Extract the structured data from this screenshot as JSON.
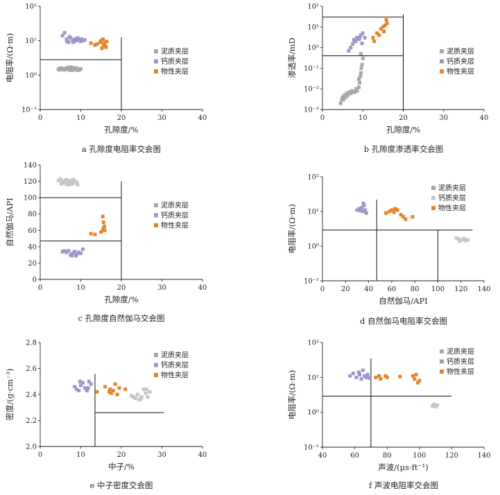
{
  "colors": {
    "mud": "#a7a7ab",
    "mud_light": "#c6c6c9",
    "calcium": "#9c97c9",
    "physical": "#e4852b"
  },
  "chart_data": [
    {
      "id": "a",
      "type": "scatter",
      "caption": "a  孔隙度电阻率交会图",
      "xlabel": "孔隙度/%",
      "ylabel": "电阻率/(Ω·m)",
      "xlim": [
        0,
        40
      ],
      "ylim": [
        0.1,
        100
      ],
      "yscale": "log",
      "xticks": [
        {
          "v": 0,
          "t": "0"
        },
        {
          "v": 10,
          "t": "10"
        },
        {
          "v": 20,
          "t": "20"
        },
        {
          "v": 30,
          "t": "30"
        },
        {
          "v": 40,
          "t": "40"
        }
      ],
      "yticks": [
        {
          "v": 0.1,
          "t": "10⁻¹"
        },
        {
          "v": 1,
          "t": "10⁰"
        },
        {
          "v": 10,
          "t": "10¹"
        },
        {
          "v": 100,
          "t": "10²"
        }
      ],
      "boundaries": [
        [
          [
            0,
            2.8
          ],
          [
            20,
            2.8
          ]
        ],
        [
          [
            20,
            0.1
          ],
          [
            20,
            12.5
          ]
        ]
      ],
      "legend": [
        {
          "label": "泥质夹层",
          "color": "mud"
        },
        {
          "label": "钙质夹层",
          "color": "calcium"
        },
        {
          "label": "物性夹层",
          "color": "physical"
        }
      ],
      "series": [
        {
          "name": "泥质夹层",
          "color": "mud",
          "x": [
            4.5,
            5.0,
            5.5,
            6.0,
            6.5,
            7.0,
            7.2,
            7.5,
            8.0,
            8.2,
            8.5,
            9.0,
            9.2,
            9.5,
            10.0,
            5.8,
            6.8,
            7.8,
            8.8,
            4.8,
            9.6,
            6.3,
            7.6,
            8.6
          ],
          "y": [
            1.5,
            1.6,
            1.55,
            1.45,
            1.5,
            1.6,
            1.4,
            1.55,
            1.5,
            1.62,
            1.45,
            1.55,
            1.38,
            1.48,
            1.52,
            1.42,
            1.66,
            1.38,
            1.6,
            1.42,
            1.4,
            1.56,
            1.7,
            1.46
          ]
        },
        {
          "name": "钙质夹层",
          "color": "calcium",
          "x": [
            5.5,
            6.0,
            6.5,
            7.0,
            7.5,
            8.0,
            8.5,
            9.0,
            9.5,
            10.0,
            10.5,
            11.0,
            7.2,
            8.2,
            9.2,
            6.6,
            10.2
          ],
          "y": [
            14,
            17,
            11,
            9,
            12,
            10,
            11,
            10,
            11,
            9.5,
            10,
            10.5,
            13,
            9,
            12,
            9.5,
            11
          ]
        },
        {
          "name": "物性夹层",
          "color": "physical",
          "x": [
            12.5,
            13.5,
            14.0,
            15.0,
            15.5,
            16.0,
            15.2,
            15.8,
            16.2,
            14.8,
            16.4,
            15.6
          ],
          "y": [
            8.5,
            7.5,
            8,
            10,
            11,
            7,
            6,
            8.5,
            6.5,
            9,
            9.5,
            7.6
          ]
        }
      ]
    },
    {
      "id": "b",
      "type": "scatter",
      "caption": "b  孔隙度渗透率交会图",
      "xlabel": "孔隙度/%",
      "ylabel": "渗透率/mD",
      "xlim": [
        0,
        40
      ],
      "ylim": [
        0.001,
        100
      ],
      "yscale": "log",
      "xticks": [
        {
          "v": 0,
          "t": "0"
        },
        {
          "v": 10,
          "t": "10"
        },
        {
          "v": 20,
          "t": "20"
        },
        {
          "v": 30,
          "t": "30"
        },
        {
          "v": 40,
          "t": "40"
        }
      ],
      "yticks": [
        {
          "v": 0.001,
          "t": "10⁻³"
        },
        {
          "v": 0.01,
          "t": "10⁻²"
        },
        {
          "v": 0.1,
          "t": "10⁻¹"
        },
        {
          "v": 1,
          "t": "10⁰"
        },
        {
          "v": 10,
          "t": "10¹"
        },
        {
          "v": 100,
          "t": "10²"
        }
      ],
      "boundaries": [
        [
          [
            0,
            0.4
          ],
          [
            20,
            0.4
          ]
        ],
        [
          [
            0,
            30
          ],
          [
            20,
            30
          ]
        ],
        [
          [
            20,
            0.001
          ],
          [
            20,
            40
          ]
        ]
      ],
      "legend": [
        {
          "label": "泥质夹层",
          "color": "mud"
        },
        {
          "label": "钙质夹层",
          "color": "calcium"
        },
        {
          "label": "物性夹层",
          "color": "physical"
        }
      ],
      "series": [
        {
          "name": "泥质夹层",
          "color": "mud",
          "x": [
            4.5,
            4.8,
            5.0,
            5.2,
            5.5,
            5.8,
            6.0,
            6.3,
            6.6,
            7.0,
            7.3,
            7.6,
            8.0,
            8.3,
            8.6,
            9.0,
            9.2,
            9.4,
            9.5,
            9.6,
            9.8,
            10.0,
            9.5,
            9.0
          ],
          "y": [
            0.002,
            0.003,
            0.004,
            0.003,
            0.005,
            0.004,
            0.006,
            0.005,
            0.007,
            0.006,
            0.008,
            0.007,
            0.007,
            0.01,
            0.008,
            0.012,
            0.02,
            0.04,
            0.06,
            0.1,
            0.15,
            0.3,
            0.5,
            0.03
          ]
        },
        {
          "name": "钙质夹层",
          "color": "calcium",
          "x": [
            6.5,
            7.0,
            7.5,
            8.0,
            8.5,
            9.0,
            9.5,
            10.0,
            10.5,
            8.2,
            9.2,
            9.8,
            7.8
          ],
          "y": [
            0.7,
            1.0,
            1.5,
            2.0,
            3.0,
            2.5,
            4.0,
            5.0,
            3.0,
            2.0,
            3.0,
            1.6,
            2.4
          ]
        },
        {
          "name": "物性夹层",
          "color": "physical",
          "x": [
            12.5,
            13.5,
            14.0,
            14.5,
            15.0,
            15.5,
            16.0,
            15.8,
            15.2,
            12.8
          ],
          "y": [
            3,
            5,
            4,
            8,
            10,
            12,
            15,
            22,
            6,
            2
          ]
        }
      ]
    },
    {
      "id": "c",
      "type": "scatter",
      "caption": "c  孔隙度自然伽马交会图",
      "xlabel": "孔隙度/%",
      "ylabel": "自然伽马/API",
      "xlim": [
        0,
        40
      ],
      "ylim": [
        0,
        140
      ],
      "yscale": "linear",
      "xticks": [
        {
          "v": 0,
          "t": "0"
        },
        {
          "v": 10,
          "t": "10"
        },
        {
          "v": 20,
          "t": "20"
        },
        {
          "v": 30,
          "t": "30"
        },
        {
          "v": 40,
          "t": "40"
        }
      ],
      "yticks": [
        {
          "v": 0,
          "t": "0"
        },
        {
          "v": 20,
          "t": "20"
        },
        {
          "v": 40,
          "t": "40"
        },
        {
          "v": 60,
          "t": "60"
        },
        {
          "v": 80,
          "t": "80"
        },
        {
          "v": 100,
          "t": "100"
        },
        {
          "v": 120,
          "t": "120"
        },
        {
          "v": 140,
          "t": "140"
        }
      ],
      "boundaries": [
        [
          [
            0,
            100
          ],
          [
            20,
            100
          ]
        ],
        [
          [
            0,
            47
          ],
          [
            20,
            47
          ]
        ],
        [
          [
            20,
            0
          ],
          [
            20,
            120
          ]
        ]
      ],
      "legend": [
        {
          "label": "泥质夹层",
          "color": "mud"
        },
        {
          "label": "钙质夹层",
          "color": "calcium"
        },
        {
          "label": "物性夹层",
          "color": "physical"
        }
      ],
      "series": [
        {
          "name": "泥质夹层",
          "color": "mud_light",
          "x": [
            4.5,
            5.0,
            5.5,
            6.0,
            6.5,
            7.0,
            7.5,
            8.0,
            8.5,
            9.0,
            5.2,
            6.2,
            7.2,
            8.2,
            9.2,
            6.6,
            7.8
          ],
          "y": [
            121,
            123,
            120,
            118,
            122,
            119,
            121,
            117,
            120,
            119,
            117,
            121,
            116,
            122,
            116,
            116,
            118
          ]
        },
        {
          "name": "钙质夹层",
          "color": "calcium",
          "x": [
            5.5,
            6.0,
            6.5,
            7.0,
            7.5,
            8.0,
            8.5,
            9.0,
            9.5,
            10.0,
            10.5,
            7.8,
            8.8
          ],
          "y": [
            34,
            35,
            33,
            35,
            30,
            32,
            34,
            31,
            33,
            32,
            37,
            29,
            29
          ]
        },
        {
          "name": "物性夹层",
          "color": "physical",
          "x": [
            12.5,
            13.5,
            15.0,
            15.5,
            15.8,
            15.6,
            15.4,
            15.9
          ],
          "y": [
            56,
            55,
            58,
            62,
            65,
            70,
            77,
            60
          ]
        }
      ]
    },
    {
      "id": "d",
      "type": "scatter",
      "caption": "d  自然伽马电阻率交会图",
      "xlabel": "自然伽马/API",
      "ylabel": "电阻率/(Ω·m)",
      "xlim": [
        0,
        140
      ],
      "ylim": [
        0.1,
        100
      ],
      "yscale": "log",
      "xticks": [
        {
          "v": 0,
          "t": "0"
        },
        {
          "v": 20,
          "t": "20"
        },
        {
          "v": 40,
          "t": "40"
        },
        {
          "v": 60,
          "t": "60"
        },
        {
          "v": 80,
          "t": "80"
        },
        {
          "v": 100,
          "t": "100"
        },
        {
          "v": 120,
          "t": "120"
        },
        {
          "v": 140,
          "t": "140"
        }
      ],
      "yticks": [
        {
          "v": 0.1,
          "t": "10⁻¹"
        },
        {
          "v": 1,
          "t": "10⁰"
        },
        {
          "v": 10,
          "t": "10¹"
        },
        {
          "v": 100,
          "t": "10²"
        }
      ],
      "boundaries": [
        [
          [
            0,
            2.9
          ],
          [
            130,
            2.9
          ]
        ],
        [
          [
            47,
            0.1
          ],
          [
            47,
            22
          ]
        ],
        [
          [
            100,
            0.1
          ],
          [
            100,
            2.9
          ]
        ]
      ],
      "legend": [
        {
          "label": "泥质夹层",
          "color": "mud"
        },
        {
          "label": "钙质夹层",
          "color": "mud_light"
        },
        {
          "label": "物性夹层",
          "color": "physical"
        }
      ],
      "series": [
        {
          "name": "泥质夹层",
          "color": "mud_light",
          "x": [
            116,
            118,
            120,
            122,
            124,
            126,
            119,
            123
          ],
          "y": [
            1.7,
            1.6,
            1.5,
            1.55,
            1.45,
            1.5,
            1.4,
            1.65
          ]
        },
        {
          "name": "钙质夹层",
          "color": "calcium",
          "x": [
            30,
            32,
            34,
            35,
            36,
            37,
            38,
            33,
            35.5
          ],
          "y": [
            11,
            12,
            13,
            10,
            15,
            11,
            9,
            10.5,
            17
          ]
        },
        {
          "name": "物性夹层",
          "color": "physical",
          "x": [
            55,
            58,
            60,
            62,
            65,
            68,
            70,
            72,
            78,
            63
          ],
          "y": [
            9,
            10,
            11,
            9.5,
            11,
            8,
            7,
            6,
            7,
            12
          ]
        }
      ]
    },
    {
      "id": "e",
      "type": "scatter",
      "caption": "e  中子密度交会图",
      "xlabel": "中子/%",
      "ylabel": "密度/(g·cm⁻³)",
      "xlim": [
        0,
        40
      ],
      "ylim": [
        2.0,
        2.8
      ],
      "yscale": "linear",
      "xticks": [
        {
          "v": 0,
          "t": "0"
        },
        {
          "v": 10,
          "t": "10"
        },
        {
          "v": 20,
          "t": "20"
        },
        {
          "v": 30,
          "t": "30"
        },
        {
          "v": 40,
          "t": "40"
        }
      ],
      "yticks": [
        {
          "v": 2.0,
          "t": "2.0"
        },
        {
          "v": 2.2,
          "t": "2.2"
        },
        {
          "v": 2.4,
          "t": "2.4"
        },
        {
          "v": 2.6,
          "t": "2.6"
        },
        {
          "v": 2.8,
          "t": "2.8"
        }
      ],
      "boundaries": [
        [
          [
            13.5,
            2.0
          ],
          [
            13.5,
            2.56
          ]
        ],
        [
          [
            13.5,
            2.26
          ],
          [
            30.5,
            2.26
          ]
        ]
      ],
      "legend": [
        {
          "label": "泥质夹层",
          "color": "mud"
        },
        {
          "label": "钙质夹层",
          "color": "calcium"
        },
        {
          "label": "物性夹层",
          "color": "physical"
        }
      ],
      "series": [
        {
          "name": "泥质夹层",
          "color": "mud_light",
          "x": [
            22.5,
            23.5,
            24.0,
            24.5,
            25.0,
            25.5,
            26.0,
            26.5,
            27.0,
            23.0,
            24.8,
            26.2
          ],
          "y": [
            2.39,
            2.37,
            2.4,
            2.36,
            2.38,
            2.44,
            2.41,
            2.38,
            2.42,
            2.38,
            2.37,
            2.44
          ]
        },
        {
          "name": "钙质夹层",
          "color": "calcium",
          "x": [
            8.5,
            9.0,
            9.5,
            10.0,
            10.5,
            11.0,
            11.5,
            12.0,
            12.5,
            9.8,
            11.8
          ],
          "y": [
            2.46,
            2.44,
            2.43,
            2.47,
            2.49,
            2.45,
            2.43,
            2.5,
            2.48,
            2.5,
            2.45
          ]
        },
        {
          "name": "物性夹层",
          "color": "physical",
          "x": [
            14.0,
            16.0,
            17.0,
            17.5,
            18.0,
            18.5,
            19.0,
            19.5,
            21.0,
            17.2
          ],
          "y": [
            2.42,
            2.46,
            2.42,
            2.41,
            2.43,
            2.48,
            2.4,
            2.45,
            2.44,
            2.44
          ]
        }
      ]
    },
    {
      "id": "f",
      "type": "scatter",
      "caption": "f  声波电阻率交会图",
      "xlabel": "声波/(μs·ft⁻¹)",
      "ylabel": "电阻率/(Ω·m)",
      "xlim": [
        40,
        140
      ],
      "ylim": [
        0.1,
        100
      ],
      "yscale": "log",
      "xticks": [
        {
          "v": 40,
          "t": "40"
        },
        {
          "v": 60,
          "t": "60"
        },
        {
          "v": 80,
          "t": "80"
        },
        {
          "v": 100,
          "t": "100"
        },
        {
          "v": 120,
          "t": "120"
        },
        {
          "v": 140,
          "t": "140"
        }
      ],
      "yticks": [
        {
          "v": 0.1,
          "t": "10⁻¹"
        },
        {
          "v": 1,
          "t": "10⁰"
        },
        {
          "v": 10,
          "t": "10¹"
        },
        {
          "v": 100,
          "t": "10²"
        }
      ],
      "boundaries": [
        [
          [
            40,
            2.9
          ],
          [
            120,
            2.9
          ]
        ],
        [
          [
            70,
            0.1
          ],
          [
            70,
            35
          ]
        ]
      ],
      "legend": [
        {
          "label": "泥质夹层",
          "color": "mud"
        },
        {
          "label": "钙质夹层",
          "color": "calcium"
        },
        {
          "label": "物性夹层",
          "color": "physical"
        }
      ],
      "series": [
        {
          "name": "泥质夹层",
          "color": "mud_light",
          "x": [
            108,
            109,
            110,
            111
          ],
          "y": [
            1.5,
            1.7,
            1.45,
            1.6
          ]
        },
        {
          "name": "钙质夹层",
          "color": "calcium",
          "x": [
            57,
            59,
            61,
            63,
            64,
            65,
            66,
            67,
            68,
            69,
            62.5
          ],
          "y": [
            11,
            13,
            10,
            12,
            9,
            16,
            11,
            10,
            12,
            9.5,
            14
          ]
        },
        {
          "name": "物性夹层",
          "color": "physical",
          "x": [
            73,
            76,
            79,
            80,
            88,
            96,
            97,
            98,
            99,
            100,
            75
          ],
          "y": [
            10,
            9,
            11,
            10,
            10.5,
            11,
            9,
            12,
            7,
            8,
            11
          ]
        }
      ]
    }
  ]
}
